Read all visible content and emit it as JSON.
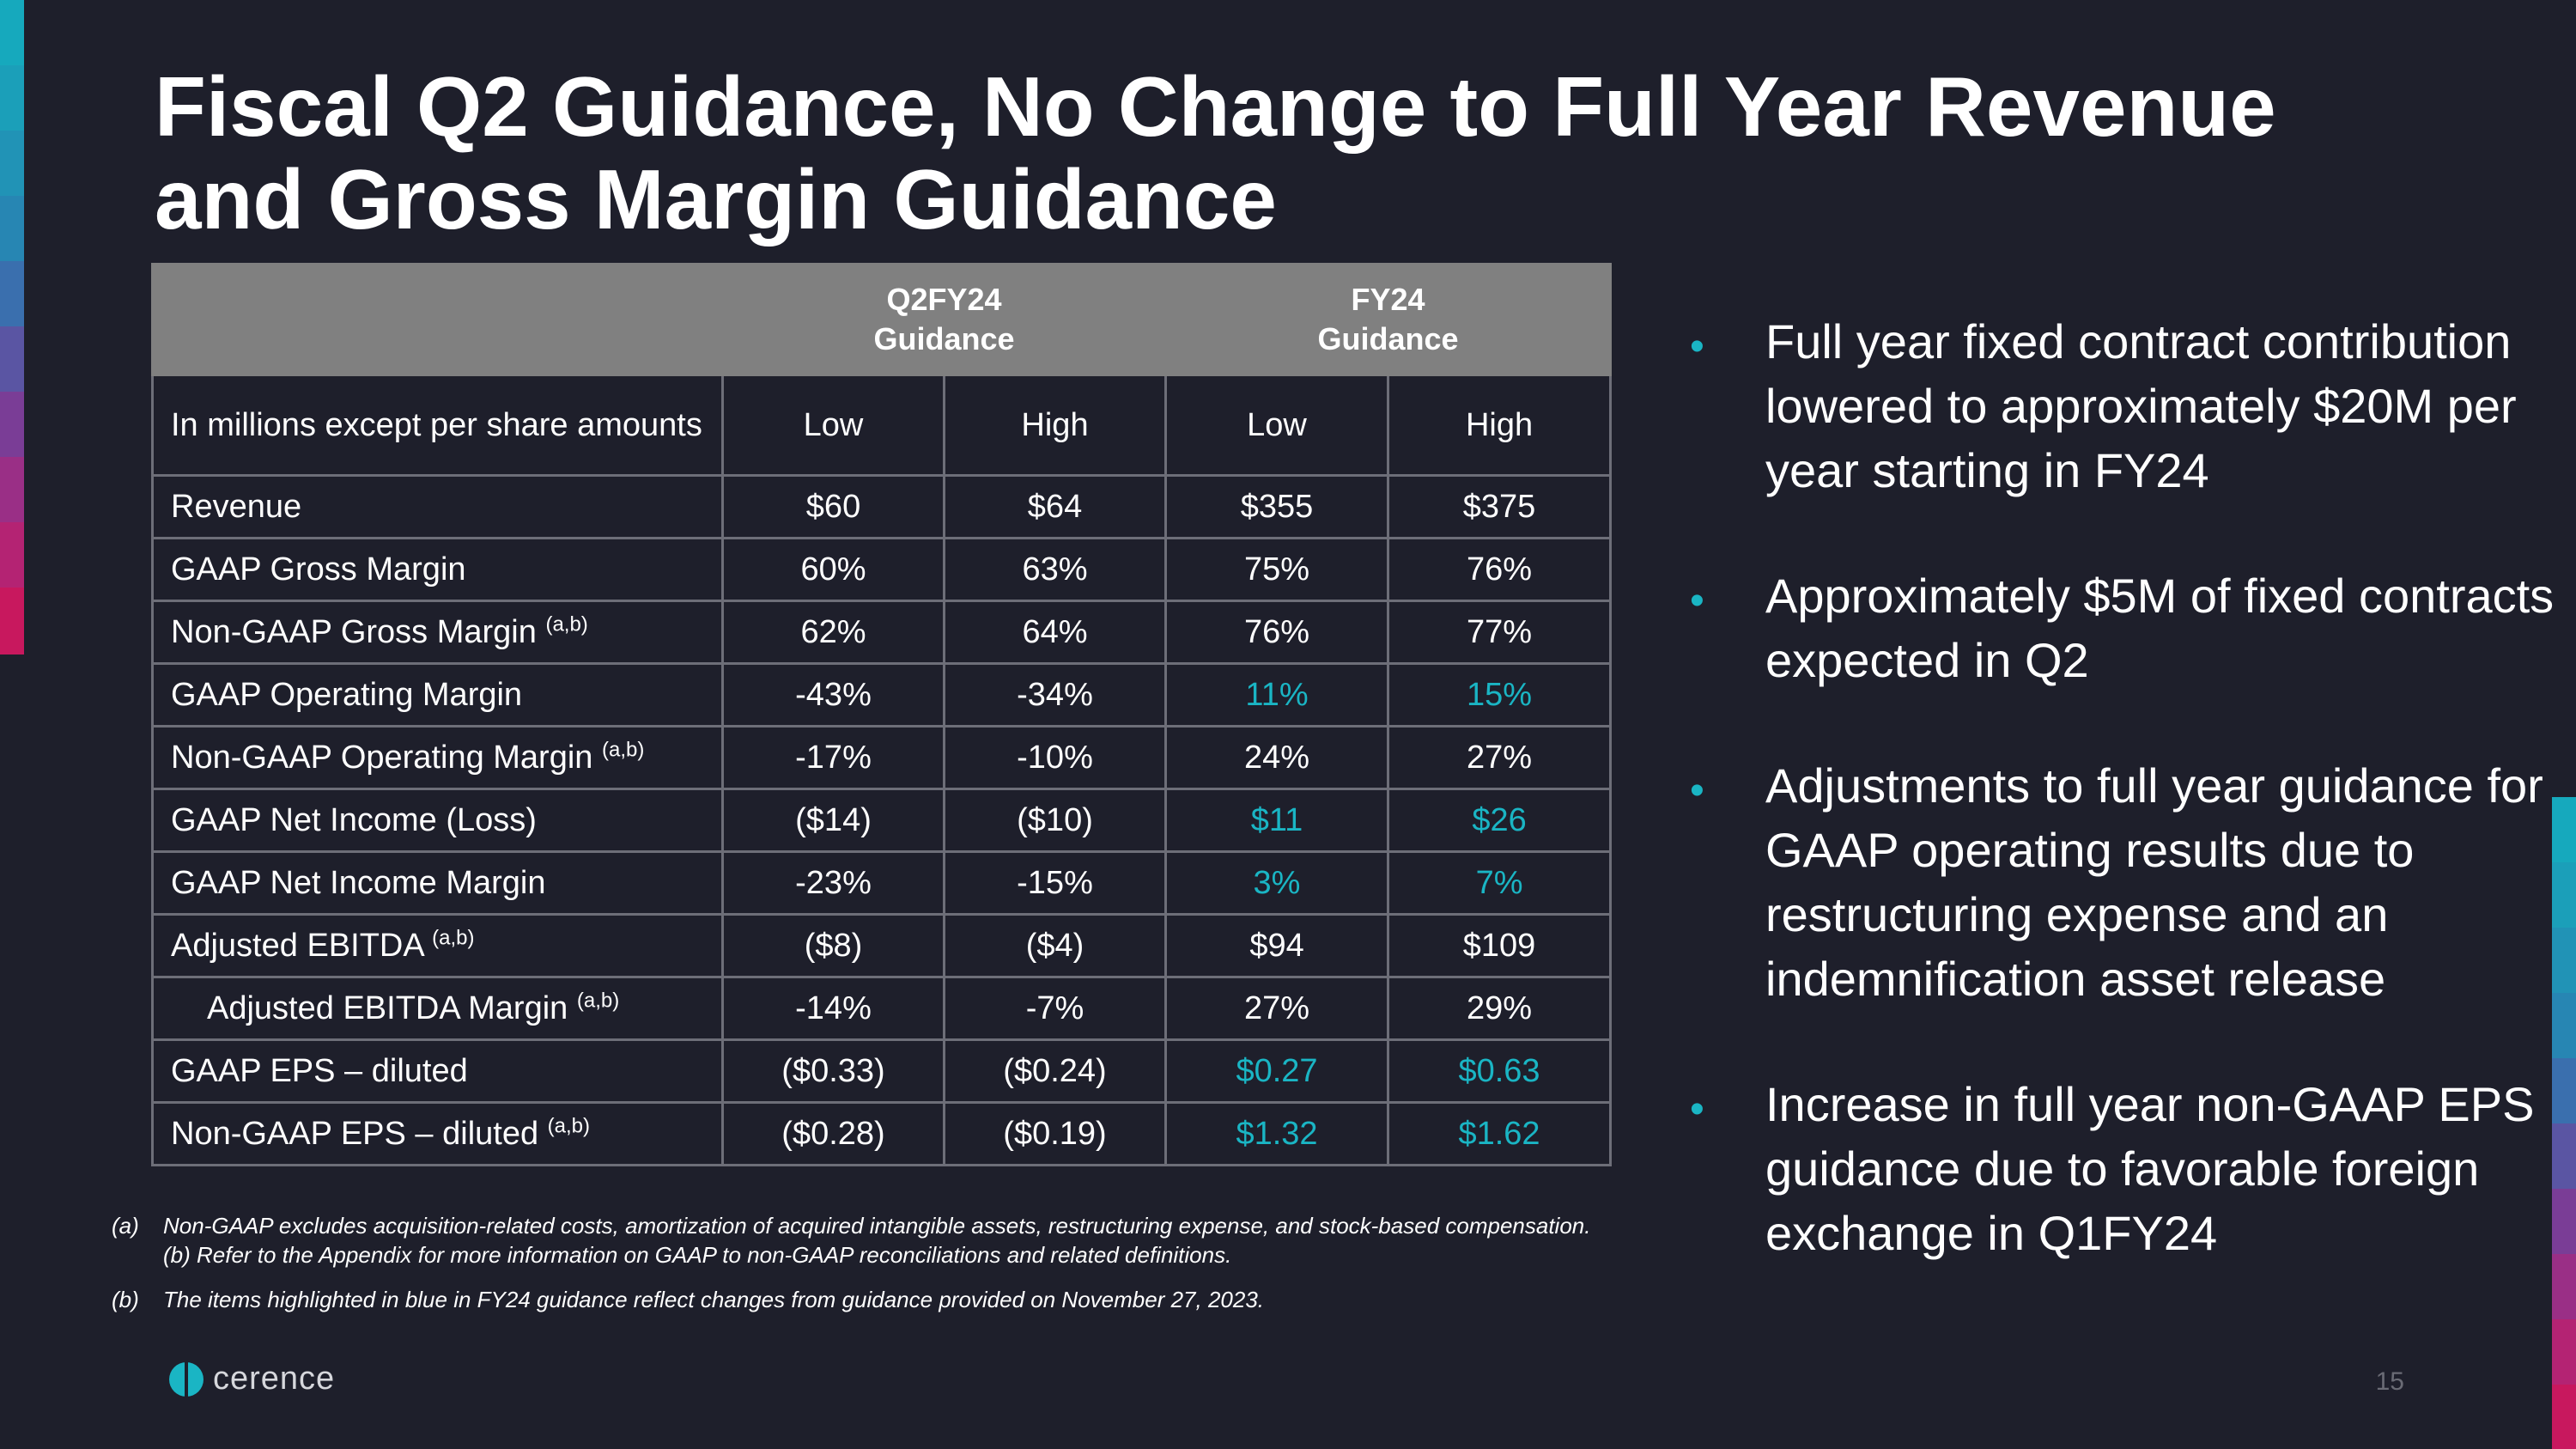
{
  "title": {
    "line1": "Fiscal Q2 Guidance, No Change to Full Year Revenue",
    "line2": "and Gross Margin Guidance"
  },
  "colors": {
    "accent": "#1ab5c4",
    "background": "#1e1f2b",
    "header_bg": "#808080"
  },
  "table": {
    "group_headers": [
      {
        "line1": "Q2FY24",
        "line2": "Guidance"
      },
      {
        "line1": "FY24",
        "line2": "Guidance"
      }
    ],
    "column_headers": [
      "In millions except per share amounts",
      "Low",
      "High",
      "Low",
      "High"
    ],
    "rows": [
      {
        "label": "Revenue",
        "sup": "",
        "values": [
          "$60",
          "$64",
          "$355",
          "$375"
        ]
      },
      {
        "label": "GAAP Gross Margin",
        "sup": "",
        "values": [
          "60%",
          "63%",
          "75%",
          "76%"
        ]
      },
      {
        "label": "Non-GAAP Gross Margin",
        "sup": "(a,b)",
        "values": [
          "62%",
          "64%",
          "76%",
          "77%"
        ]
      },
      {
        "label": "GAAP Operating Margin",
        "sup": "",
        "values": [
          "-43%",
          "-34%",
          "11%",
          "15%"
        ]
      },
      {
        "label": "Non-GAAP Operating Margin",
        "sup": "(a,b)",
        "values": [
          "-17%",
          "-10%",
          "24%",
          "27%"
        ]
      },
      {
        "label": "GAAP Net Income (Loss)",
        "sup": "",
        "values": [
          "($14)",
          "($10)",
          "$11",
          "$26"
        ]
      },
      {
        "label": "GAAP Net Income Margin",
        "sup": "",
        "values": [
          "-23%",
          "-15%",
          "3%",
          "7%"
        ]
      },
      {
        "label": "Adjusted EBITDA",
        "sup": "(a,b)",
        "values": [
          "($8)",
          "($4)",
          "$94",
          "$109"
        ]
      },
      {
        "label": "Adjusted EBITDA Margin",
        "sup": "(a,b)",
        "values": [
          "-14%",
          "-7%",
          "27%",
          "29%"
        ]
      },
      {
        "label": "GAAP EPS – diluted",
        "sup": "",
        "values": [
          "($0.33)",
          "($0.24)",
          "$0.27",
          "$0.63"
        ]
      },
      {
        "label": "Non-GAAP EPS – diluted",
        "sup": "(a,b)",
        "values": [
          "($0.28)",
          "($0.19)",
          "$1.32",
          "$1.62"
        ]
      }
    ]
  },
  "bullets": [
    "Full year fixed contract contribution lowered to approximately $20M per year starting in FY24",
    "Approximately $5M of fixed contracts expected in Q2",
    "Adjustments to full year guidance for GAAP operating results due to restructuring expense and an indemnification asset release",
    "Increase in full year non-GAAP EPS guidance due to favorable foreign exchange in Q1FY24"
  ],
  "bullet_glyph": "•",
  "footnotes": [
    {
      "marker": "(a)",
      "line1": "Non-GAAP excludes acquisition-related costs, amortization of acquired intangible assets, restructuring expense, and stock-based compensation.",
      "line2": "(b) Refer to the Appendix for more information on GAAP to non-GAAP reconciliations and related definitions."
    },
    {
      "marker": "(b)",
      "line1": "The items highlighted in blue in FY24 guidance reflect changes from guidance provided on November 27, 2023.",
      "line2": ""
    }
  ],
  "logo": {
    "text": "cerence",
    "icon": "cerence-logo-icon"
  },
  "page_number": "15"
}
